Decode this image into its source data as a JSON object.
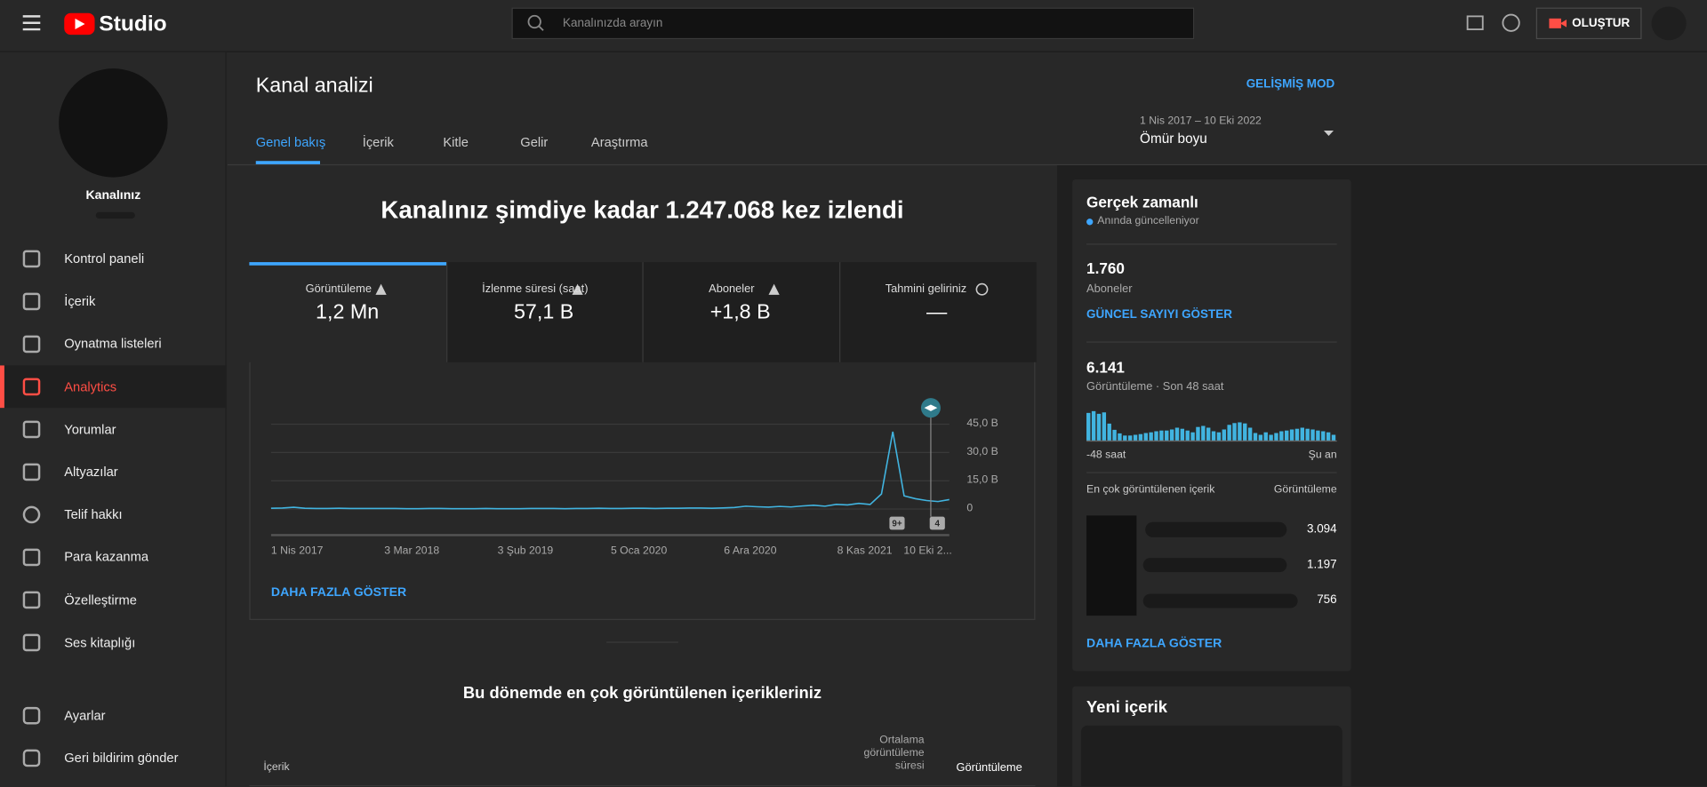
{
  "header": {
    "brand": "Studio",
    "search_placeholder": "Kanalınızda arayın",
    "create_button": "OLUŞTUR"
  },
  "sidebar": {
    "channel_name": "Kanalınız",
    "items": [
      "Kontrol paneli",
      "İçerik",
      "Oynatma listeleri",
      "Analytics",
      "Yorumlar",
      "Altyazılar",
      "Telif hakkı",
      "Para kazanma",
      "Özelleştirme",
      "Ses kitaplığı"
    ],
    "bottom_items": [
      "Ayarlar",
      "Geri bildirim gönder"
    ]
  },
  "page": {
    "title": "Kanal analizi",
    "advanced_mode": "GELİŞMİŞ MOD",
    "tabs": [
      "Genel bakış",
      "İçerik",
      "Kitle",
      "Gelir",
      "Araştırma"
    ],
    "date_range": "1 Nis 2017 – 10 Eki 2022",
    "period": "Ömür boyu"
  },
  "overview": {
    "headline": "Kanalınız şimdiye kadar 1.247.068 kez izlendi",
    "metrics": [
      {
        "label": "Görüntüleme",
        "value": "1,2 Mn"
      },
      {
        "label": "İzlenme süresi (saat)",
        "value": "57,1 B"
      },
      {
        "label": "Aboneler",
        "value": "+1,8 B"
      },
      {
        "label": "Tahmini geliriniz",
        "value": "—"
      }
    ],
    "chart": {
      "type": "line",
      "color": "#41b4e0",
      "categories": [
        "1 Nis 2017",
        "3 Mar 2018",
        "3 Şub 2019",
        "5 Oca 2020",
        "6 Ara 2020",
        "8 Kas 2021",
        "10 Eki 2..."
      ],
      "values": [
        0.4,
        0.5,
        0.9,
        0.4,
        0.3,
        0.3,
        0.4,
        0.3,
        0.3,
        0.3,
        0.3,
        0.3,
        0.2,
        0.2,
        0.3,
        0.3,
        0.2,
        0.2,
        0.2,
        0.3,
        0.2,
        0.2,
        0.2,
        0.3,
        0.3,
        0.3,
        0.2,
        0.3,
        0.3,
        0.4,
        0.3,
        0.3,
        0.4,
        0.4,
        0.3,
        0.4,
        0.4,
        0.5,
        0.5,
        0.4,
        0.6,
        0.8,
        1.5,
        1.2,
        1.0,
        1.4,
        1.1,
        1.6,
        2.0,
        1.5,
        2.5,
        2.2,
        3.0,
        2.4,
        8.0,
        41.0,
        7.0,
        5.5,
        4.5,
        4.0,
        5.0
      ],
      "ylim": [
        0,
        45
      ],
      "yticks": [
        0,
        {
          "value": 15,
          "label": "15,0 B"
        },
        {
          "value": 30,
          "label": "30,0 B"
        },
        {
          "value": 45,
          "label": "45,0 B"
        }
      ],
      "annotations": [
        "9+",
        "4"
      ]
    },
    "show_more": "DAHA FAZLA GÖSTER"
  },
  "top_content": {
    "title": "Bu dönemde en çok görüntülenen içerikleriniz",
    "columns": [
      "İçerik",
      "Ortalama görüntüleme süresi",
      "Görüntüleme"
    ]
  },
  "realtime": {
    "title": "Gerçek zamanlı",
    "status": "Anında güncelleniyor",
    "subscribers": {
      "value": "1.760",
      "label": "Aboneler",
      "action": "GÜNCEL SAYIYI GÖSTER"
    },
    "views": {
      "value": "6.141",
      "label": "Görüntüleme · Son 48 saat"
    },
    "chart": {
      "type": "bar",
      "color": "#41b4e0",
      "values": [
        155,
        165,
        150,
        158,
        95,
        60,
        40,
        28,
        28,
        32,
        36,
        42,
        46,
        52,
        56,
        56,
        62,
        72,
        66,
        56,
        46,
        76,
        82,
        72,
        52,
        46,
        62,
        88,
        98,
        102,
        96,
        72,
        42,
        32,
        46,
        32,
        42,
        52,
        56,
        62,
        66,
        72,
        66,
        62,
        56,
        52,
        46,
        32
      ],
      "start_label": "-48 saat",
      "end_label": "Şu an"
    },
    "top_content": {
      "header": "En çok görüntülenen içerik",
      "column": "Görüntüleme",
      "rows": [
        "3.094",
        "1.197",
        "756"
      ]
    },
    "show_more": "DAHA FAZLA GÖSTER"
  },
  "new_content": {
    "title": "Yeni içerik"
  }
}
